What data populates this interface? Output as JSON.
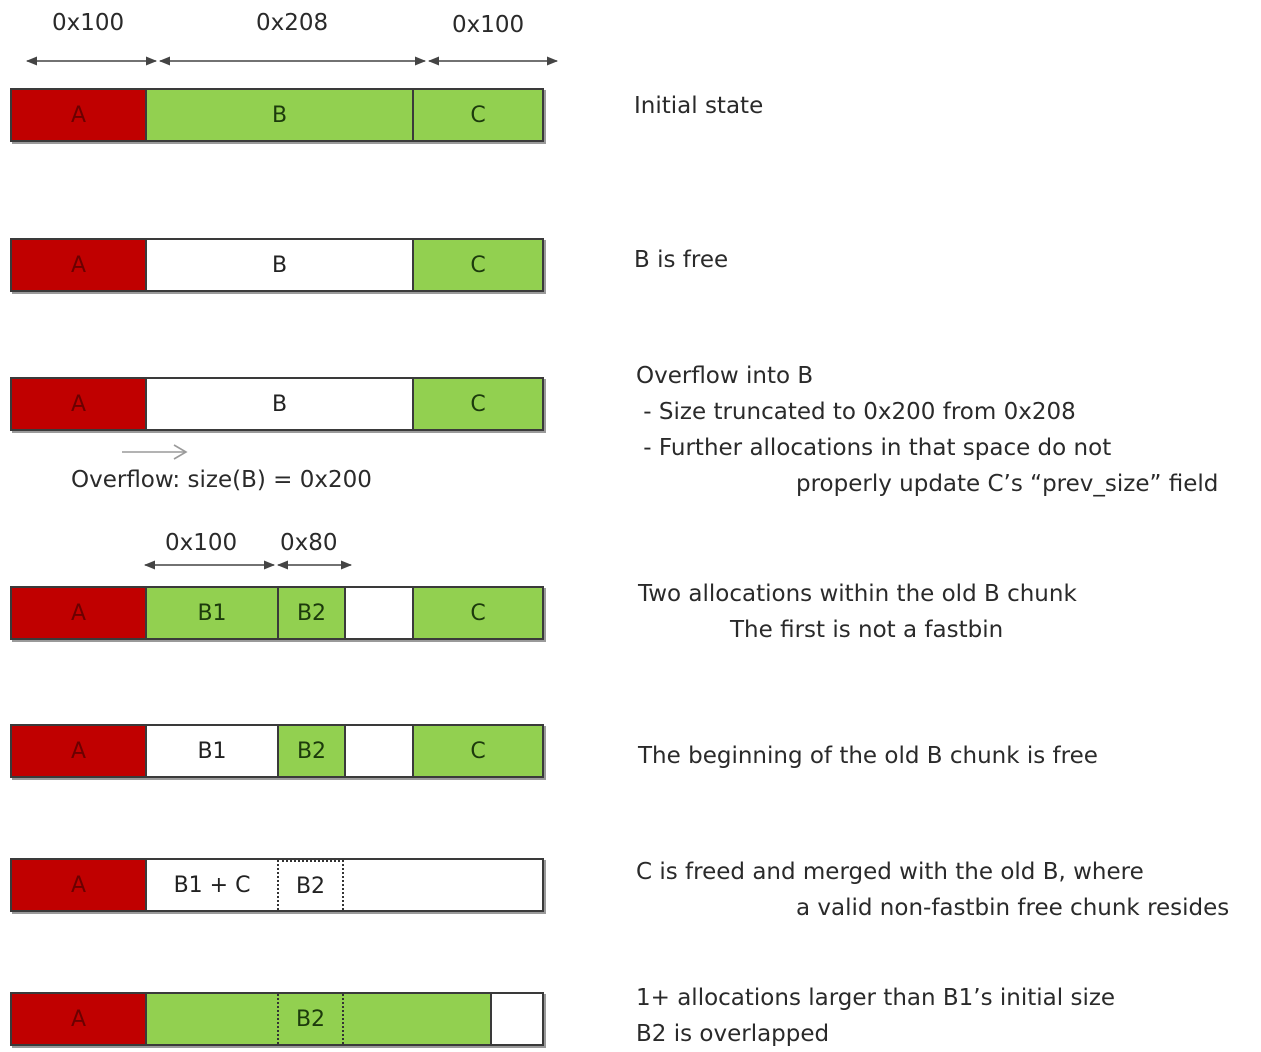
{
  "dimensions": {
    "top": [
      "0x100",
      "0x208",
      "0x100"
    ],
    "split": [
      "0x100",
      "0x80"
    ]
  },
  "overflow_note": "Overflow: size(B) = 0x200",
  "rows": [
    {
      "segments": [
        "A",
        "B",
        "C"
      ],
      "description": [
        "Initial state"
      ]
    },
    {
      "segments": [
        "A",
        "B",
        "C"
      ],
      "description": [
        "B is free"
      ]
    },
    {
      "segments": [
        "A",
        "B",
        "C"
      ],
      "description": [
        "Overflow into B",
        " - Size truncated to 0x200 from 0x208",
        " - Further allocations in that space do not",
        "properly update C’s “prev_size” field"
      ]
    },
    {
      "segments": [
        "A",
        "B1",
        "B2",
        "",
        "C"
      ],
      "description": [
        "Two allocations within the old B chunk",
        "The first is not a fastbin"
      ]
    },
    {
      "segments": [
        "A",
        "B1",
        "B2",
        "",
        "C"
      ],
      "description": [
        "The beginning of the old B chunk is free"
      ]
    },
    {
      "segments": [
        "A",
        "B1 + C",
        "B2",
        ""
      ],
      "description": [
        "C is freed and merged with the old B, where",
        "a valid non-fastbin free chunk resides"
      ]
    },
    {
      "segments": [
        "A",
        "B2",
        ""
      ],
      "description": [
        "1+ allocations larger than B1’s initial size",
        "B2 is overlapped"
      ]
    }
  ],
  "colors": {
    "allocated_red": "#c00000",
    "allocated_green": "#92d050",
    "free": "#ffffff"
  }
}
